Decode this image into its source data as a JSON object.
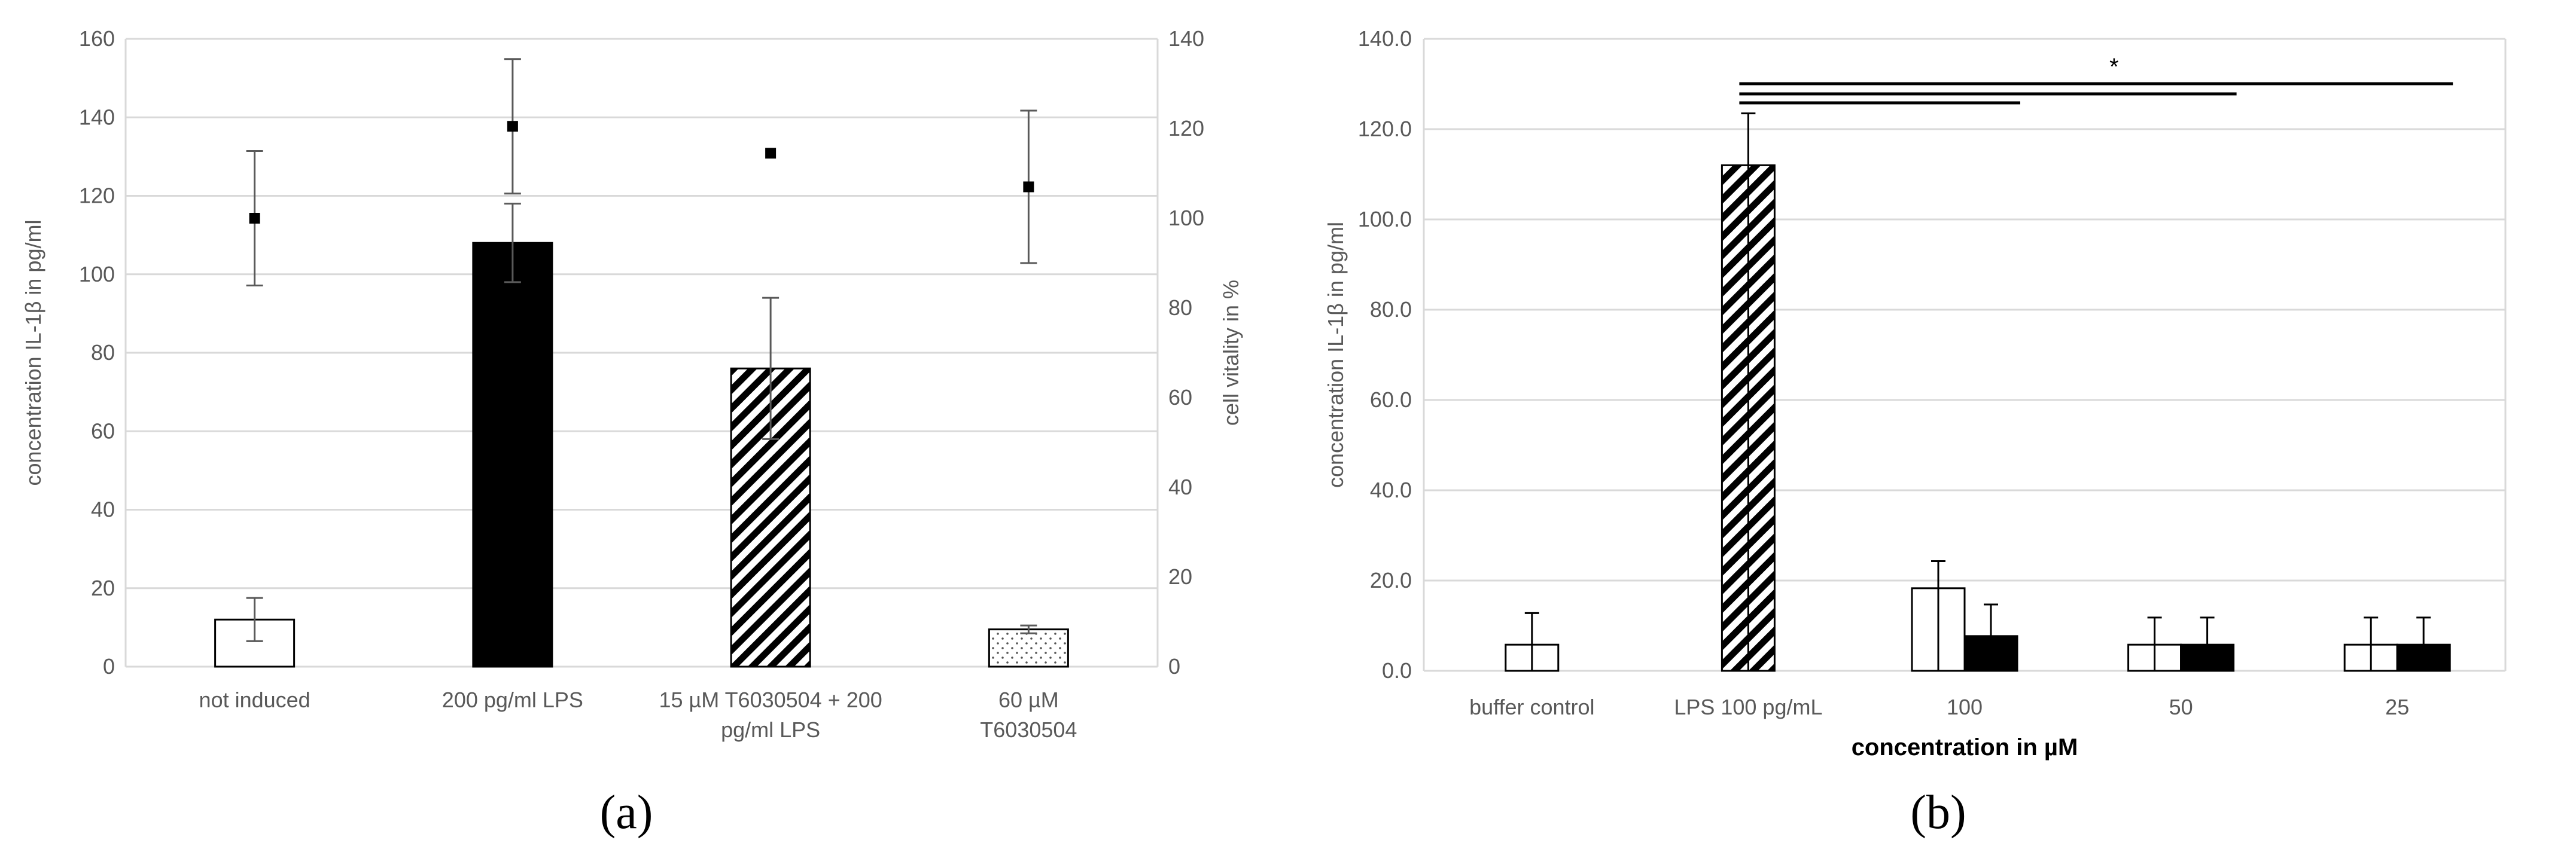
{
  "panel_labels": [
    "(a)",
    "(b)"
  ],
  "chart_data": [
    {
      "type": "bar",
      "panel": "(a)",
      "categories": [
        "not induced",
        "200 pg/ml LPS",
        "15 µM T6030504 + 200 pg/ml LPS",
        "60 µM T6030504"
      ],
      "category_lines": [
        [
          "not induced"
        ],
        [
          "200 pg/ml LPS"
        ],
        [
          "15 µM T6030504 + 200",
          "pg/ml LPS"
        ],
        [
          "60 µM",
          "T6030504"
        ]
      ],
      "bars": {
        "values": [
          12,
          108,
          76,
          9.5
        ],
        "errors": [
          5.5,
          10,
          18,
          1
        ],
        "fills": [
          "white",
          "solid",
          "hatch",
          "dots"
        ]
      },
      "vitality_points": {
        "values": [
          100,
          120.5,
          114.5,
          107
        ],
        "errors": [
          15,
          15,
          null,
          17
        ]
      },
      "ylabel": "concentration IL-1β in pg/ml",
      "ylim": [
        0,
        160
      ],
      "yticks": [
        0,
        20,
        40,
        60,
        80,
        100,
        120,
        140,
        160
      ],
      "y2label": "cell vitality in %",
      "y2lim": [
        0,
        140
      ],
      "y2ticks": [
        0,
        20,
        40,
        60,
        80,
        100,
        120,
        140
      ],
      "grid": true,
      "colors": {
        "grid": "#d9d9d9",
        "bar_fill": "#000000",
        "error": "#595959",
        "text": "#595959"
      }
    },
    {
      "type": "bar",
      "panel": "(b)",
      "categories": [
        "buffer control",
        "LPS 100 pg/mL",
        "100",
        "50",
        "25"
      ],
      "series": [
        {
          "values": [
            5.8,
            112,
            18.3,
            5.8,
            5.8
          ],
          "errors": [
            7,
            11.5,
            6,
            6,
            6
          ]
        },
        {
          "values": [
            null,
            null,
            7.7,
            5.8,
            5.8
          ],
          "errors": [
            null,
            null,
            7,
            6,
            6
          ]
        }
      ],
      "category_series_fills": [
        [
          "white"
        ],
        [
          "hatch"
        ],
        [
          "white",
          "solid"
        ],
        [
          "white",
          "solid"
        ],
        [
          "white",
          "solid"
        ]
      ],
      "xlabel": "concentration in µM",
      "ylabel": "concentration IL-1β in pg/ml",
      "ylim": [
        0,
        140
      ],
      "yticks": [
        "0.0",
        "20.0",
        "40.0",
        "60.0",
        "80.0",
        "100.0",
        "120.0",
        "140.0"
      ],
      "significance": {
        "label": "*",
        "from_category": 1,
        "to_categories": [
          2,
          3,
          4
        ]
      },
      "grid": true,
      "colors": {
        "grid": "#d9d9d9",
        "bar_fill": "#000000",
        "error": "#000000",
        "text": "#595959"
      }
    }
  ]
}
